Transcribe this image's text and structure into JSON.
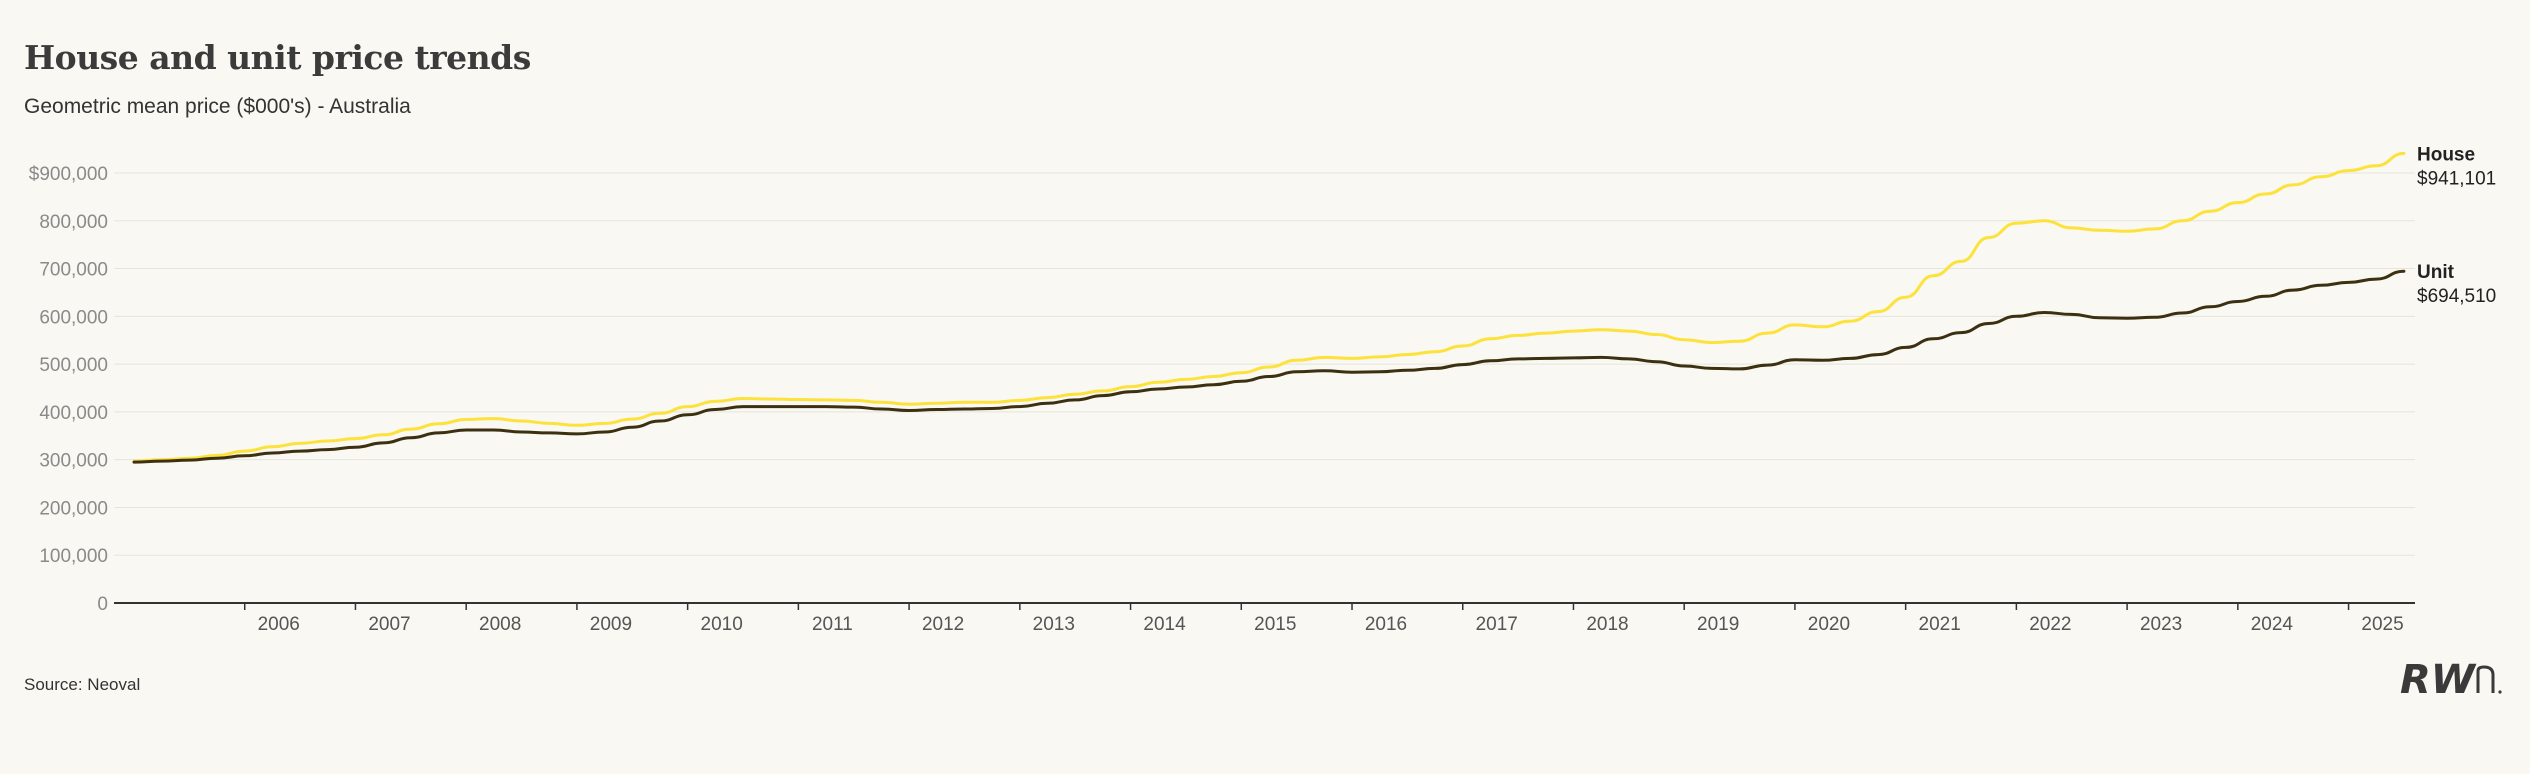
{
  "header": {
    "title": "House and unit price trends",
    "subtitle": "Geometric mean price ($000's) - Australia"
  },
  "footer": {
    "source": "Source: Neoval",
    "logo_text": "RWn"
  },
  "colors": {
    "house": "#fce23a",
    "unit": "#3d3010",
    "grid": "#e6e4dc",
    "axis": "#333333",
    "background": "#f9f8f3"
  },
  "chart_data": {
    "type": "line",
    "title": "House and unit price trends",
    "subtitle": "Geometric mean price ($000's) - Australia",
    "xlabel": "",
    "ylabel": "",
    "xlim": [
      2005.0,
      2025.6
    ],
    "ylim": [
      0,
      900000
    ],
    "yticks": [
      0,
      100000,
      200000,
      300000,
      400000,
      500000,
      600000,
      700000,
      800000,
      900000
    ],
    "ytick_labels": [
      "0",
      "100,000",
      "200,000",
      "300,000",
      "400,000",
      "500,000",
      "600,000",
      "700,000",
      "800,000",
      "$900,000"
    ],
    "xticks": [
      2006,
      2007,
      2008,
      2009,
      2010,
      2011,
      2012,
      2013,
      2014,
      2015,
      2016,
      2017,
      2018,
      2019,
      2020,
      2021,
      2022,
      2023,
      2024,
      2025
    ],
    "grid": true,
    "legend": "end-labels-right",
    "x": [
      2005.0,
      2005.25,
      2005.5,
      2005.75,
      2006.0,
      2006.25,
      2006.5,
      2006.75,
      2007.0,
      2007.25,
      2007.5,
      2007.75,
      2008.0,
      2008.25,
      2008.5,
      2008.75,
      2009.0,
      2009.25,
      2009.5,
      2009.75,
      2010.0,
      2010.25,
      2010.5,
      2010.75,
      2011.0,
      2011.25,
      2011.5,
      2011.75,
      2012.0,
      2012.25,
      2012.5,
      2012.75,
      2013.0,
      2013.25,
      2013.5,
      2013.75,
      2014.0,
      2014.25,
      2014.5,
      2014.75,
      2015.0,
      2015.25,
      2015.5,
      2015.75,
      2016.0,
      2016.25,
      2016.5,
      2016.75,
      2017.0,
      2017.25,
      2017.5,
      2017.75,
      2018.0,
      2018.25,
      2018.5,
      2018.75,
      2019.0,
      2019.25,
      2019.5,
      2019.75,
      2020.0,
      2020.25,
      2020.5,
      2020.75,
      2021.0,
      2021.25,
      2021.5,
      2021.75,
      2022.0,
      2022.25,
      2022.5,
      2022.75,
      2023.0,
      2023.25,
      2023.5,
      2023.75,
      2024.0,
      2024.25,
      2024.5,
      2024.75,
      2025.0,
      2025.25,
      2025.5
    ],
    "series": [
      {
        "name": "House",
        "end_label": "$941,101",
        "values": [
          297000,
          300000,
          303000,
          309000,
          318000,
          327000,
          334000,
          339000,
          344000,
          352000,
          364000,
          375000,
          384000,
          386000,
          381000,
          376000,
          372000,
          376000,
          385000,
          397000,
          411000,
          422000,
          428000,
          427000,
          426000,
          425000,
          424000,
          420000,
          416000,
          418000,
          420000,
          420000,
          424000,
          430000,
          437000,
          444000,
          453000,
          462000,
          468000,
          474000,
          482000,
          494000,
          508000,
          514000,
          512000,
          515000,
          520000,
          526000,
          538000,
          553000,
          560000,
          565000,
          569000,
          572000,
          569000,
          562000,
          551000,
          545000,
          548000,
          565000,
          582000,
          578000,
          590000,
          610000,
          640000,
          685000,
          715000,
          765000,
          795000,
          800000,
          785000,
          780000,
          778000,
          783000,
          800000,
          820000,
          838000,
          856000,
          875000,
          892000,
          905000,
          915000,
          941101
        ]
      },
      {
        "name": "Unit",
        "end_label": "$694,510",
        "values": [
          295000,
          297000,
          299000,
          303000,
          308000,
          314000,
          318000,
          321000,
          326000,
          335000,
          346000,
          356000,
          362000,
          362000,
          358000,
          356000,
          354000,
          358000,
          368000,
          381000,
          394000,
          405000,
          411000,
          411000,
          411000,
          411000,
          410000,
          406000,
          403000,
          405000,
          406000,
          407000,
          411000,
          418000,
          425000,
          434000,
          442000,
          448000,
          452000,
          457000,
          464000,
          474000,
          484000,
          486000,
          483000,
          484000,
          487000,
          491000,
          499000,
          507000,
          511000,
          512000,
          513000,
          514000,
          511000,
          505000,
          496000,
          491000,
          490000,
          498000,
          509000,
          508000,
          512000,
          520000,
          535000,
          553000,
          566000,
          585000,
          600000,
          608000,
          604000,
          597000,
          596000,
          598000,
          607000,
          620000,
          631000,
          642000,
          655000,
          665000,
          671000,
          678000,
          694510
        ]
      }
    ]
  }
}
